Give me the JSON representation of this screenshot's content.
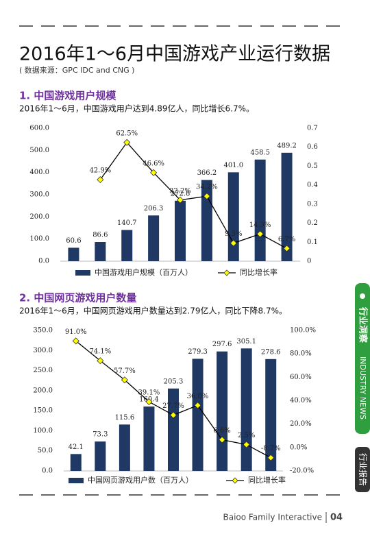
{
  "header": {
    "title": "2016年1～6月中国游戏产业运行数据",
    "source": "( 数据来源：GPC IDC and CNG )"
  },
  "chart_data": [
    {
      "type": "bar",
      "title": "1. 中国游戏用户规模",
      "subtitle": "2016年1～6月，中国游戏用户达到4.89亿人，同比增长6.7%。",
      "categories": [
        null,
        null,
        null,
        null,
        null,
        null,
        null,
        null,
        null
      ],
      "series": [
        {
          "name": "中国游戏用户规模（百万人）",
          "color": "#1f3864",
          "values": [
            60.6,
            86.6,
            140.7,
            206.3,
            272.8,
            366.2,
            401.0,
            458.5,
            489.2
          ],
          "value_labels": [
            "60.6",
            "86.6",
            "140.7",
            "206.3",
            "272.8",
            "366.2",
            "401.0",
            "458.5",
            "489.2"
          ]
        },
        {
          "name": "同比增长率",
          "type": "line",
          "axis": "y2",
          "color": "#000000",
          "marker_color": "#ffff00",
          "values": [
            null,
            0.429,
            0.625,
            0.466,
            0.322,
            0.342,
            0.095,
            0.143,
            0.067
          ],
          "value_labels": [
            null,
            "42.9%",
            "62.5%",
            "46.6%",
            "32.2%",
            "34.2%",
            "9.5%",
            "14.3%",
            "6.7%"
          ]
        }
      ],
      "ylim": [
        0,
        600
      ],
      "yticks": [
        {
          "value": 0,
          "label": "0.0"
        },
        {
          "value": 100,
          "label": "100.0"
        },
        {
          "value": 200,
          "label": "200.0"
        },
        {
          "value": 300,
          "label": "300.0"
        },
        {
          "value": 400,
          "label": "400.0"
        },
        {
          "value": 500,
          "label": "500.0"
        },
        {
          "value": 600,
          "label": "600.0"
        }
      ],
      "y2lim": [
        0,
        0.7
      ],
      "y2ticks": [
        0,
        0.1,
        0.2,
        0.3,
        0.4,
        0.5,
        0.6,
        0.7
      ],
      "legend": "bottom"
    },
    {
      "type": "bar",
      "title": "2. 中国网页游戏用户数量",
      "subtitle": "2016年1～6月，中国网页游戏用户数量达到2.79亿人，同比下降8.7%。",
      "categories": [
        null,
        null,
        null,
        null,
        null,
        null,
        null,
        null,
        null
      ],
      "series": [
        {
          "name": "中国网页游戏用户数（百万人）",
          "color": "#1f3864",
          "values": [
            42.1,
            73.3,
            115.6,
            160.4,
            205.3,
            279.3,
            297.6,
            305.1,
            278.6
          ],
          "value_labels": [
            "42.1",
            "73.3",
            "115.6",
            "160.4",
            "205.3",
            "279.3",
            "297.6",
            "305.1",
            "278.6"
          ]
        },
        {
          "name": "同比增长率",
          "type": "line",
          "axis": "y2",
          "color": "#000000",
          "marker_color": "#ffff00",
          "values": [
            91.0,
            74.1,
            57.7,
            39.1,
            27.7,
            36.0,
            6.6,
            2.5,
            -8.7
          ],
          "value_labels": [
            "91.0%",
            "74.1%",
            "57.7%",
            "39.1%",
            "27.7%",
            "36.0%",
            "6.6%",
            "2.5%",
            "-8.7%"
          ]
        }
      ],
      "ylim": [
        0,
        350
      ],
      "yticks": [
        {
          "value": 0,
          "label": "0.0"
        },
        {
          "value": 50,
          "label": "50.0"
        },
        {
          "value": 100,
          "label": "100.0"
        },
        {
          "value": 150,
          "label": "150.0"
        },
        {
          "value": 200,
          "label": "200.0"
        },
        {
          "value": 250,
          "label": "250.0"
        },
        {
          "value": 300,
          "label": "300.0"
        },
        {
          "value": 350,
          "label": "350.0"
        }
      ],
      "y2lim": [
        -20,
        100
      ],
      "y2ticks": [
        {
          "value": -20,
          "label": "-20.0%"
        },
        {
          "value": 0,
          "label": "0.0%"
        },
        {
          "value": 20,
          "label": "20.0%"
        },
        {
          "value": 40,
          "label": "40.0%"
        },
        {
          "value": 60,
          "label": "60.0%"
        },
        {
          "value": 80,
          "label": "80.0%"
        },
        {
          "value": 100,
          "label": "100.0%"
        }
      ],
      "legend": "bottom"
    }
  ],
  "side_tab": {
    "section": "行业洞察",
    "english": "INDUSTRY NEWS",
    "report": "行业报告"
  },
  "footer": {
    "company": "Baioo Family Interactive",
    "page": "04"
  }
}
